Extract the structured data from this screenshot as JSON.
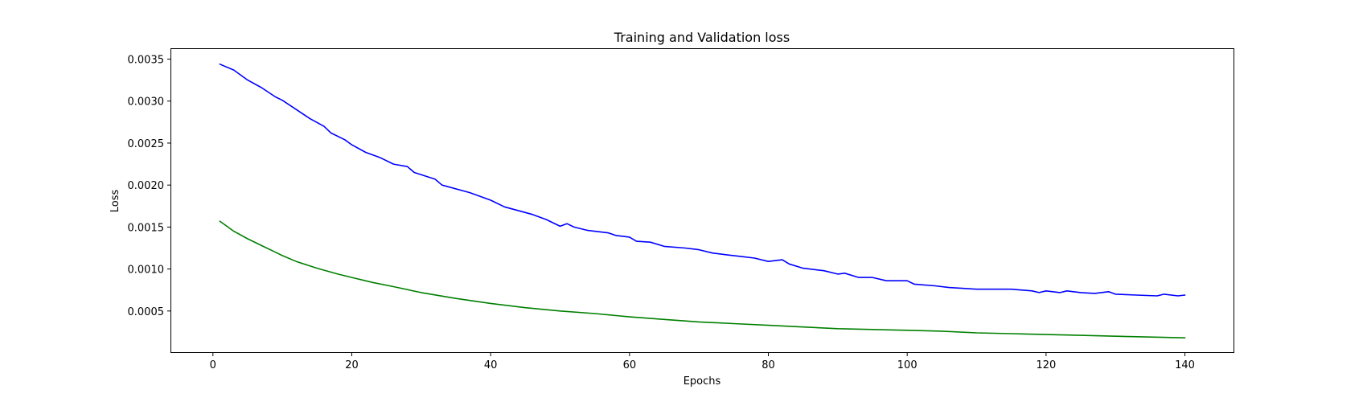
{
  "chart_data": {
    "type": "line",
    "title": "Training and Validation loss",
    "xlabel": "Epochs",
    "ylabel": "Loss",
    "xlim": [
      -6,
      147
    ],
    "ylim": [
      1e-05,
      0.00362
    ],
    "xticks": [
      0,
      20,
      40,
      60,
      80,
      100,
      120,
      140
    ],
    "xtick_labels": [
      "0",
      "20",
      "40",
      "60",
      "80",
      "100",
      "120",
      "140"
    ],
    "yticks": [
      0.0005,
      0.001,
      0.0015,
      0.002,
      0.0025,
      0.003,
      0.0035
    ],
    "ytick_labels": [
      "0.0005",
      "0.0010",
      "0.0015",
      "0.0020",
      "0.0025",
      "0.0030",
      "0.0035"
    ],
    "grid": false,
    "series": [
      {
        "color": "#0000ff",
        "points": [
          [
            1,
            0.00344
          ],
          [
            3,
            0.00337
          ],
          [
            5,
            0.00325
          ],
          [
            7,
            0.00316
          ],
          [
            9,
            0.00305
          ],
          [
            10,
            0.00301
          ],
          [
            12,
            0.0029
          ],
          [
            14,
            0.00279
          ],
          [
            16,
            0.0027
          ],
          [
            17,
            0.00262
          ],
          [
            19,
            0.00254
          ],
          [
            20,
            0.00248
          ],
          [
            22,
            0.00239
          ],
          [
            24,
            0.00233
          ],
          [
            26,
            0.00225
          ],
          [
            28,
            0.00222
          ],
          [
            29,
            0.00215
          ],
          [
            32,
            0.00207
          ],
          [
            33,
            0.002
          ],
          [
            37,
            0.00191
          ],
          [
            40,
            0.00182
          ],
          [
            42,
            0.00174
          ],
          [
            46,
            0.00165
          ],
          [
            48,
            0.00159
          ],
          [
            50,
            0.00151
          ],
          [
            51,
            0.00154
          ],
          [
            52,
            0.0015
          ],
          [
            54,
            0.00146
          ],
          [
            57,
            0.00143
          ],
          [
            58,
            0.0014
          ],
          [
            60,
            0.00138
          ],
          [
            61,
            0.00133
          ],
          [
            63,
            0.00132
          ],
          [
            65,
            0.00127
          ],
          [
            68,
            0.00125
          ],
          [
            70,
            0.00123
          ],
          [
            72,
            0.00119
          ],
          [
            74,
            0.00117
          ],
          [
            76,
            0.00115
          ],
          [
            78,
            0.00113
          ],
          [
            80,
            0.00109
          ],
          [
            82,
            0.00111
          ],
          [
            83,
            0.00106
          ],
          [
            85,
            0.00101
          ],
          [
            88,
            0.00098
          ],
          [
            90,
            0.00094
          ],
          [
            91,
            0.00095
          ],
          [
            93,
            0.0009
          ],
          [
            95,
            0.0009
          ],
          [
            97,
            0.00086
          ],
          [
            100,
            0.00086
          ],
          [
            101,
            0.00082
          ],
          [
            104,
            0.0008
          ],
          [
            106,
            0.00078
          ],
          [
            110,
            0.00076
          ],
          [
            115,
            0.00076
          ],
          [
            118,
            0.00074
          ],
          [
            119,
            0.00072
          ],
          [
            120,
            0.00074
          ],
          [
            122,
            0.00072
          ],
          [
            123,
            0.00074
          ],
          [
            125,
            0.00072
          ],
          [
            127,
            0.00071
          ],
          [
            129,
            0.00073
          ],
          [
            130,
            0.0007
          ],
          [
            133,
            0.00069
          ],
          [
            136,
            0.00068
          ],
          [
            137,
            0.0007
          ],
          [
            139,
            0.00068
          ],
          [
            140,
            0.00069
          ]
        ]
      },
      {
        "color": "#008000",
        "points": [
          [
            1,
            0.00157
          ],
          [
            2,
            0.00151
          ],
          [
            3,
            0.00145
          ],
          [
            5,
            0.00136
          ],
          [
            7,
            0.00128
          ],
          [
            9,
            0.0012
          ],
          [
            10,
            0.00116
          ],
          [
            12,
            0.00109
          ],
          [
            15,
            0.00101
          ],
          [
            18,
            0.00094
          ],
          [
            20,
            0.0009
          ],
          [
            23,
            0.00084
          ],
          [
            26,
            0.00079
          ],
          [
            30,
            0.00072
          ],
          [
            35,
            0.00065
          ],
          [
            40,
            0.00059
          ],
          [
            45,
            0.00054
          ],
          [
            50,
            0.0005
          ],
          [
            55,
            0.00047
          ],
          [
            60,
            0.00043
          ],
          [
            65,
            0.0004
          ],
          [
            70,
            0.00037
          ],
          [
            75,
            0.00035
          ],
          [
            80,
            0.00033
          ],
          [
            85,
            0.00031
          ],
          [
            90,
            0.00029
          ],
          [
            95,
            0.00028
          ],
          [
            100,
            0.00027
          ],
          [
            105,
            0.00026
          ],
          [
            110,
            0.00024
          ],
          [
            115,
            0.00023
          ],
          [
            120,
            0.00022
          ],
          [
            125,
            0.00021
          ],
          [
            130,
            0.0002
          ],
          [
            135,
            0.00019
          ],
          [
            140,
            0.00018
          ]
        ]
      }
    ]
  }
}
